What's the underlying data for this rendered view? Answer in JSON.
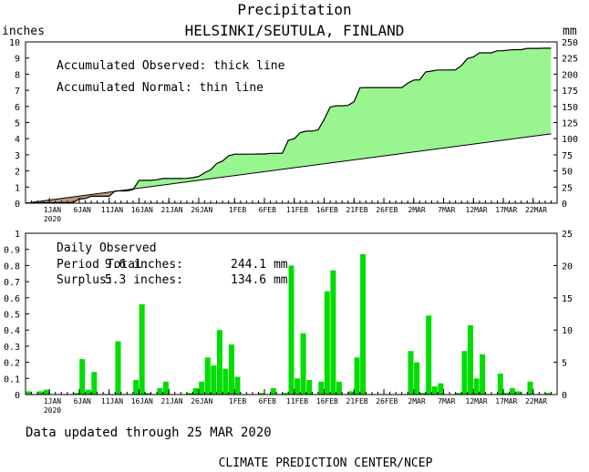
{
  "header": {
    "title": "Precipitation",
    "subtitle": "HELSINKI/SEUTULA, FINLAND",
    "left_unit": "inches",
    "right_unit": "mm"
  },
  "x_axis": {
    "tick_labels": [
      "1JAN",
      "6JAN",
      "11JAN",
      "16JAN",
      "21JAN",
      "26JAN",
      "1FEB",
      "6FEB",
      "11FEB",
      "16FEB",
      "21FEB",
      "26FEB",
      "2MAR",
      "7MAR",
      "12MAR",
      "17MAR",
      "22MAR"
    ],
    "year_label": "2020"
  },
  "footer": {
    "updated": "Data updated through 25 MAR 2020",
    "credit": "CLIMATE PREDICTION CENTER/NCEP"
  },
  "colors": {
    "surplus_fill": "#98f590",
    "deficit_fill": "#c09880",
    "bar_fill": "#00dd00",
    "line": "#000000"
  },
  "chart_data": [
    {
      "type": "area",
      "title": "Accumulated precipitation",
      "legend": [
        "Accumulated Observed: thick line",
        "Accumulated Normal: thin line"
      ],
      "legend_placement": "top-left",
      "ylabel_left": "inches",
      "ylabel_right": "mm",
      "ylim": [
        0,
        10
      ],
      "ylim_right": [
        0,
        250
      ],
      "yticks_left": [
        0,
        1,
        2,
        3,
        4,
        5,
        6,
        7,
        8,
        9,
        10
      ],
      "yticks_right": [
        0,
        25,
        50,
        75,
        100,
        125,
        150,
        175,
        200,
        225,
        250
      ],
      "x_start": "2019-12-28",
      "x_end": "2020-03-26",
      "grid": false,
      "series": [
        {
          "name": "Accumulated Observed",
          "points": [
            [
              "2019-12-28",
              0.0
            ],
            [
              "2019-12-29",
              0.02
            ],
            [
              "2019-12-30",
              0.02
            ],
            [
              "2019-12-31",
              0.04
            ],
            [
              "2020-01-01",
              0.04
            ],
            [
              "2020-01-02",
              0.04
            ],
            [
              "2020-01-03",
              0.04
            ],
            [
              "2020-01-04",
              0.04
            ],
            [
              "2020-01-05",
              0.05
            ],
            [
              "2020-01-06",
              0.26
            ],
            [
              "2020-01-07",
              0.29
            ],
            [
              "2020-01-08",
              0.43
            ],
            [
              "2020-01-09",
              0.43
            ],
            [
              "2020-01-10",
              0.43
            ],
            [
              "2020-01-11",
              0.43
            ],
            [
              "2020-01-12",
              0.76
            ],
            [
              "2020-01-13",
              0.76
            ],
            [
              "2020-01-14",
              0.76
            ],
            [
              "2020-01-15",
              0.85
            ],
            [
              "2020-01-16",
              1.41
            ],
            [
              "2020-01-17",
              1.42
            ],
            [
              "2020-01-18",
              1.42
            ],
            [
              "2020-01-19",
              1.46
            ],
            [
              "2020-01-20",
              1.53
            ],
            [
              "2020-01-21",
              1.53
            ],
            [
              "2020-01-22",
              1.53
            ],
            [
              "2020-01-23",
              1.53
            ],
            [
              "2020-01-24",
              1.54
            ],
            [
              "2020-01-25",
              1.58
            ],
            [
              "2020-01-26",
              1.66
            ],
            [
              "2020-01-27",
              1.89
            ],
            [
              "2020-01-28",
              2.07
            ],
            [
              "2020-01-29",
              2.46
            ],
            [
              "2020-01-30",
              2.62
            ],
            [
              "2020-01-31",
              2.93
            ],
            [
              "2020-02-01",
              3.04
            ],
            [
              "2020-02-02",
              3.04
            ],
            [
              "2020-02-03",
              3.04
            ],
            [
              "2020-02-04",
              3.04
            ],
            [
              "2020-02-05",
              3.05
            ],
            [
              "2020-02-06",
              3.05
            ],
            [
              "2020-02-07",
              3.09
            ],
            [
              "2020-02-08",
              3.09
            ],
            [
              "2020-02-09",
              3.1
            ],
            [
              "2020-02-10",
              3.9
            ],
            [
              "2020-02-11",
              4.0
            ],
            [
              "2020-02-12",
              4.38
            ],
            [
              "2020-02-13",
              4.47
            ],
            [
              "2020-02-14",
              4.47
            ],
            [
              "2020-02-15",
              4.55
            ],
            [
              "2020-02-16",
              5.19
            ],
            [
              "2020-02-17",
              5.96
            ],
            [
              "2020-02-18",
              6.04
            ],
            [
              "2020-02-19",
              6.04
            ],
            [
              "2020-02-20",
              6.06
            ],
            [
              "2020-02-21",
              6.29
            ],
            [
              "2020-02-22",
              7.16
            ],
            [
              "2020-02-23",
              7.17
            ],
            [
              "2020-02-24",
              7.17
            ],
            [
              "2020-02-25",
              7.17
            ],
            [
              "2020-02-26",
              7.17
            ],
            [
              "2020-02-27",
              7.17
            ],
            [
              "2020-02-28",
              7.17
            ],
            [
              "2020-02-29",
              7.17
            ],
            [
              "2020-03-01",
              7.44
            ],
            [
              "2020-03-02",
              7.64
            ],
            [
              "2020-03-03",
              7.65
            ],
            [
              "2020-03-04",
              8.14
            ],
            [
              "2020-03-05",
              8.19
            ],
            [
              "2020-03-06",
              8.26
            ],
            [
              "2020-03-07",
              8.26
            ],
            [
              "2020-03-08",
              8.26
            ],
            [
              "2020-03-09",
              8.27
            ],
            [
              "2020-03-10",
              8.54
            ],
            [
              "2020-03-11",
              8.97
            ],
            [
              "2020-03-12",
              9.07
            ],
            [
              "2020-03-13",
              9.32
            ],
            [
              "2020-03-14",
              9.32
            ],
            [
              "2020-03-15",
              9.32
            ],
            [
              "2020-03-16",
              9.45
            ],
            [
              "2020-03-17",
              9.46
            ],
            [
              "2020-03-18",
              9.5
            ],
            [
              "2020-03-19",
              9.52
            ],
            [
              "2020-03-20",
              9.52
            ],
            [
              "2020-03-21",
              9.6
            ],
            [
              "2020-03-22",
              9.6
            ],
            [
              "2020-03-23",
              9.6
            ],
            [
              "2020-03-24",
              9.61
            ],
            [
              "2020-03-25",
              9.61
            ]
          ]
        },
        {
          "name": "Accumulated Normal",
          "points": [
            [
              "2019-12-28",
              0.0
            ],
            [
              "2020-03-25",
              4.3
            ]
          ]
        }
      ]
    },
    {
      "type": "bar",
      "title": "Daily Observed",
      "ylabel_left": "inches",
      "ylabel_right": "mm",
      "ylim": [
        0,
        1
      ],
      "ylim_right": [
        0,
        25
      ],
      "yticks_left": [
        0,
        0.1,
        0.2,
        0.3,
        0.4,
        0.5,
        0.6,
        0.7,
        0.8,
        0.9,
        1
      ],
      "yticks_right": [
        0,
        5,
        10,
        15,
        20,
        25
      ],
      "grid": false,
      "annotations": [
        {
          "label": "Period Total:",
          "inches": "9.6 inches:",
          "mm": "244.1 mm"
        },
        {
          "label": "Surplus:",
          "inches": "5.3 inches:",
          "mm": "134.6 mm"
        }
      ],
      "series": [
        {
          "name": "Daily Observed",
          "points": [
            [
              "2019-12-28",
              0.02
            ],
            [
              "2019-12-30",
              0.02
            ],
            [
              "2019-12-31",
              0.03
            ],
            [
              "2020-01-05",
              0.01
            ],
            [
              "2020-01-06",
              0.22
            ],
            [
              "2020-01-07",
              0.03
            ],
            [
              "2020-01-08",
              0.14
            ],
            [
              "2020-01-12",
              0.33
            ],
            [
              "2020-01-15",
              0.09
            ],
            [
              "2020-01-16",
              0.56
            ],
            [
              "2020-01-17",
              0.01
            ],
            [
              "2020-01-19",
              0.04
            ],
            [
              "2020-01-20",
              0.08
            ],
            [
              "2020-01-24",
              0.01
            ],
            [
              "2020-01-25",
              0.04
            ],
            [
              "2020-01-26",
              0.08
            ],
            [
              "2020-01-27",
              0.23
            ],
            [
              "2020-01-28",
              0.18
            ],
            [
              "2020-01-29",
              0.4
            ],
            [
              "2020-01-30",
              0.16
            ],
            [
              "2020-01-31",
              0.31
            ],
            [
              "2020-02-01",
              0.11
            ],
            [
              "2020-02-05",
              0.01
            ],
            [
              "2020-02-07",
              0.04
            ],
            [
              "2020-02-09",
              0.01
            ],
            [
              "2020-02-10",
              0.8
            ],
            [
              "2020-02-11",
              0.1
            ],
            [
              "2020-02-12",
              0.38
            ],
            [
              "2020-02-13",
              0.09
            ],
            [
              "2020-02-15",
              0.08
            ],
            [
              "2020-02-16",
              0.64
            ],
            [
              "2020-02-17",
              0.77
            ],
            [
              "2020-02-18",
              0.08
            ],
            [
              "2020-02-20",
              0.02
            ],
            [
              "2020-02-21",
              0.23
            ],
            [
              "2020-02-22",
              0.87
            ],
            [
              "2020-03-01",
              0.27
            ],
            [
              "2020-03-02",
              0.2
            ],
            [
              "2020-03-03",
              0.01
            ],
            [
              "2020-03-04",
              0.49
            ],
            [
              "2020-03-05",
              0.05
            ],
            [
              "2020-03-06",
              0.07
            ],
            [
              "2020-03-09",
              0.01
            ],
            [
              "2020-03-10",
              0.27
            ],
            [
              "2020-03-11",
              0.43
            ],
            [
              "2020-03-12",
              0.1
            ],
            [
              "2020-03-13",
              0.25
            ],
            [
              "2020-03-16",
              0.13
            ],
            [
              "2020-03-17",
              0.01
            ],
            [
              "2020-03-18",
              0.04
            ],
            [
              "2020-03-19",
              0.02
            ],
            [
              "2020-03-21",
              0.08
            ],
            [
              "2020-03-24",
              0.01
            ]
          ]
        }
      ]
    }
  ]
}
